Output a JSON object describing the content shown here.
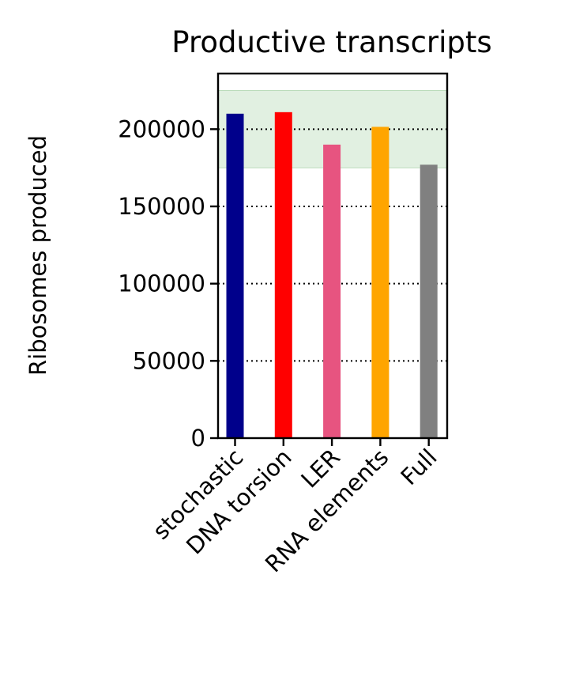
{
  "chart_data": {
    "type": "bar",
    "title": "Productive transcripts",
    "xlabel": "",
    "ylabel": "Ribosomes produced",
    "categories": [
      "stochastic",
      "DNA torsion",
      "LER",
      "RNA elements",
      "Full"
    ],
    "values": [
      210000,
      211000,
      190000,
      201500,
      177000
    ],
    "colors": [
      "#00008b",
      "#ff0000",
      "#e75480",
      "#ffa500",
      "#808080"
    ],
    "ylim": [
      0,
      236000
    ],
    "yticks": [
      0,
      50000,
      100000,
      150000,
      200000
    ],
    "ytick_labels": [
      "0",
      "50000",
      "100000",
      "150000",
      "200000"
    ],
    "grid": "y-dotted",
    "reference_band": {
      "y_min": 175000,
      "y_max": 225000,
      "color": "#c8e3c8"
    }
  }
}
